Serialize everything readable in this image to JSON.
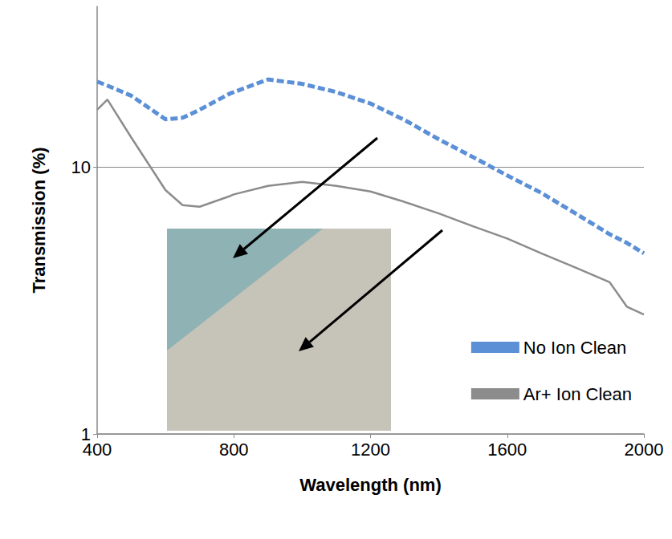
{
  "chart_data": {
    "type": "line",
    "x_label": "Wavelength (nm)",
    "y_label": "Transmission (%)",
    "x": [
      400,
      430,
      500,
      600,
      650,
      700,
      790,
      800,
      900,
      1000,
      1100,
      1200,
      1300,
      1400,
      1500,
      1600,
      1700,
      1800,
      1900,
      1950,
      2000
    ],
    "series": [
      {
        "name": "No Ion Clean",
        "color": "#5b8fd6",
        "line_style": "dashed",
        "values": [
          20.9,
          20.2,
          18.5,
          15.1,
          15.3,
          16.4,
          18.9,
          19.1,
          21.3,
          20.5,
          19.1,
          17.3,
          15.0,
          12.7,
          10.9,
          9.3,
          8.0,
          6.7,
          5.6,
          5.2,
          4.75
        ]
      },
      {
        "name": "Ar+ Ion Clean",
        "color": "#8c8c8c",
        "line_style": "solid",
        "values": [
          16.4,
          17.9,
          12.9,
          8.2,
          7.2,
          7.1,
          7.8,
          7.9,
          8.5,
          8.8,
          8.5,
          8.1,
          7.4,
          6.7,
          6.0,
          5.4,
          4.75,
          4.2,
          3.7,
          3.0,
          2.8
        ]
      }
    ],
    "xlim": [
      400,
      2000
    ],
    "xticks": [
      400,
      800,
      1200,
      1600,
      2000
    ],
    "ylim": [
      1,
      40
    ],
    "yticks": [
      1,
      10
    ],
    "log": "y",
    "grid": true,
    "legend": "lower right"
  }
}
